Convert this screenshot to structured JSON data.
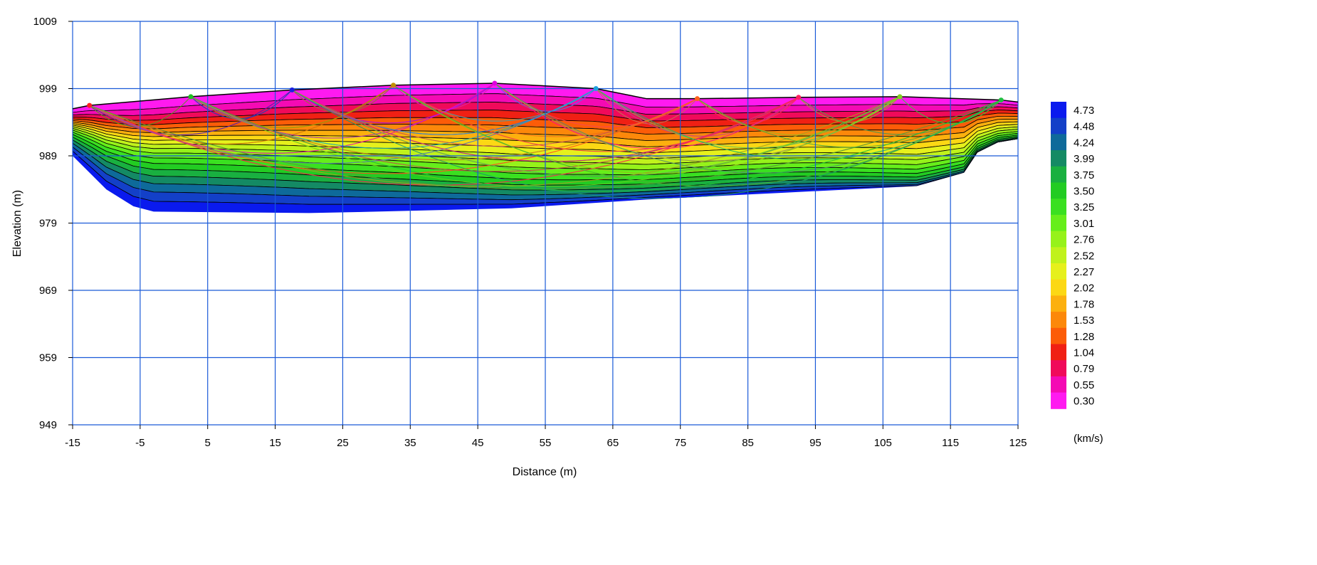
{
  "chart_data": {
    "type": "heatmap",
    "title": "",
    "xlabel": "Distance (m)",
    "ylabel": "Elevation (m)",
    "xlim": [
      -15,
      125
    ],
    "ylim": [
      949,
      1009
    ],
    "x_ticks": [
      -15,
      -5,
      5,
      15,
      25,
      35,
      45,
      55,
      65,
      75,
      85,
      95,
      105,
      115,
      125
    ],
    "y_ticks": [
      949,
      959,
      969,
      979,
      989,
      999,
      1009
    ],
    "grid": true,
    "colorbar": {
      "unit": "(km/s)",
      "levels": [
        4.73,
        4.48,
        4.24,
        3.99,
        3.75,
        3.5,
        3.25,
        3.01,
        2.76,
        2.52,
        2.27,
        2.02,
        1.78,
        1.53,
        1.28,
        1.04,
        0.79,
        0.55,
        0.3
      ],
      "level_labels": [
        "4.73",
        "4.48",
        "4.24",
        "3.99",
        "3.75",
        "3.50",
        "3.25",
        "3.01",
        "2.76",
        "2.52",
        "2.27",
        "2.02",
        "1.78",
        "1.53",
        "1.28",
        "1.04",
        "0.79",
        "0.55",
        "0.30"
      ],
      "colors": [
        "#0a1aee",
        "#1340c8",
        "#0e6a9a",
        "#148a64",
        "#19b040",
        "#22cc22",
        "#3ae020",
        "#66ee1a",
        "#96f21a",
        "#c0f21c",
        "#e6f01c",
        "#fcd814",
        "#fcb00e",
        "#fc880a",
        "#fc5c08",
        "#f02014",
        "#f00a5a",
        "#f40ab4",
        "#ff1af0"
      ]
    },
    "surface": {
      "x": [
        -15,
        -12.5,
        2.5,
        17.5,
        32.5,
        47.5,
        62.5,
        70,
        77.5,
        92.5,
        107.5,
        122.5,
        125
      ],
      "elevation": [
        996,
        996.5,
        997.8,
        998.8,
        999.5,
        999.8,
        999,
        997.5,
        997.5,
        997.7,
        997.8,
        997.3,
        997
      ]
    },
    "base": {
      "x": [
        125,
        122,
        119,
        117,
        110,
        90,
        70,
        50,
        30,
        20,
        -3,
        -6,
        -10,
        -15
      ],
      "elevation": [
        991.5,
        991,
        989.5,
        986.5,
        984.5,
        983.5,
        982.5,
        981.2,
        980.7,
        980.5,
        980.7,
        981.5,
        984,
        989
      ]
    },
    "shots": {
      "x": [
        -12.5,
        2.5,
        17.5,
        32.5,
        47.5,
        62.5,
        77.5,
        92.5,
        107.5,
        122.5
      ],
      "colors": [
        "#ff2020",
        "#20c020",
        "#1a20e0",
        "#c09000",
        "#e000e0",
        "#20a0e0",
        "#ff6020",
        "#ff2060",
        "#80d020",
        "#20c040"
      ]
    }
  }
}
